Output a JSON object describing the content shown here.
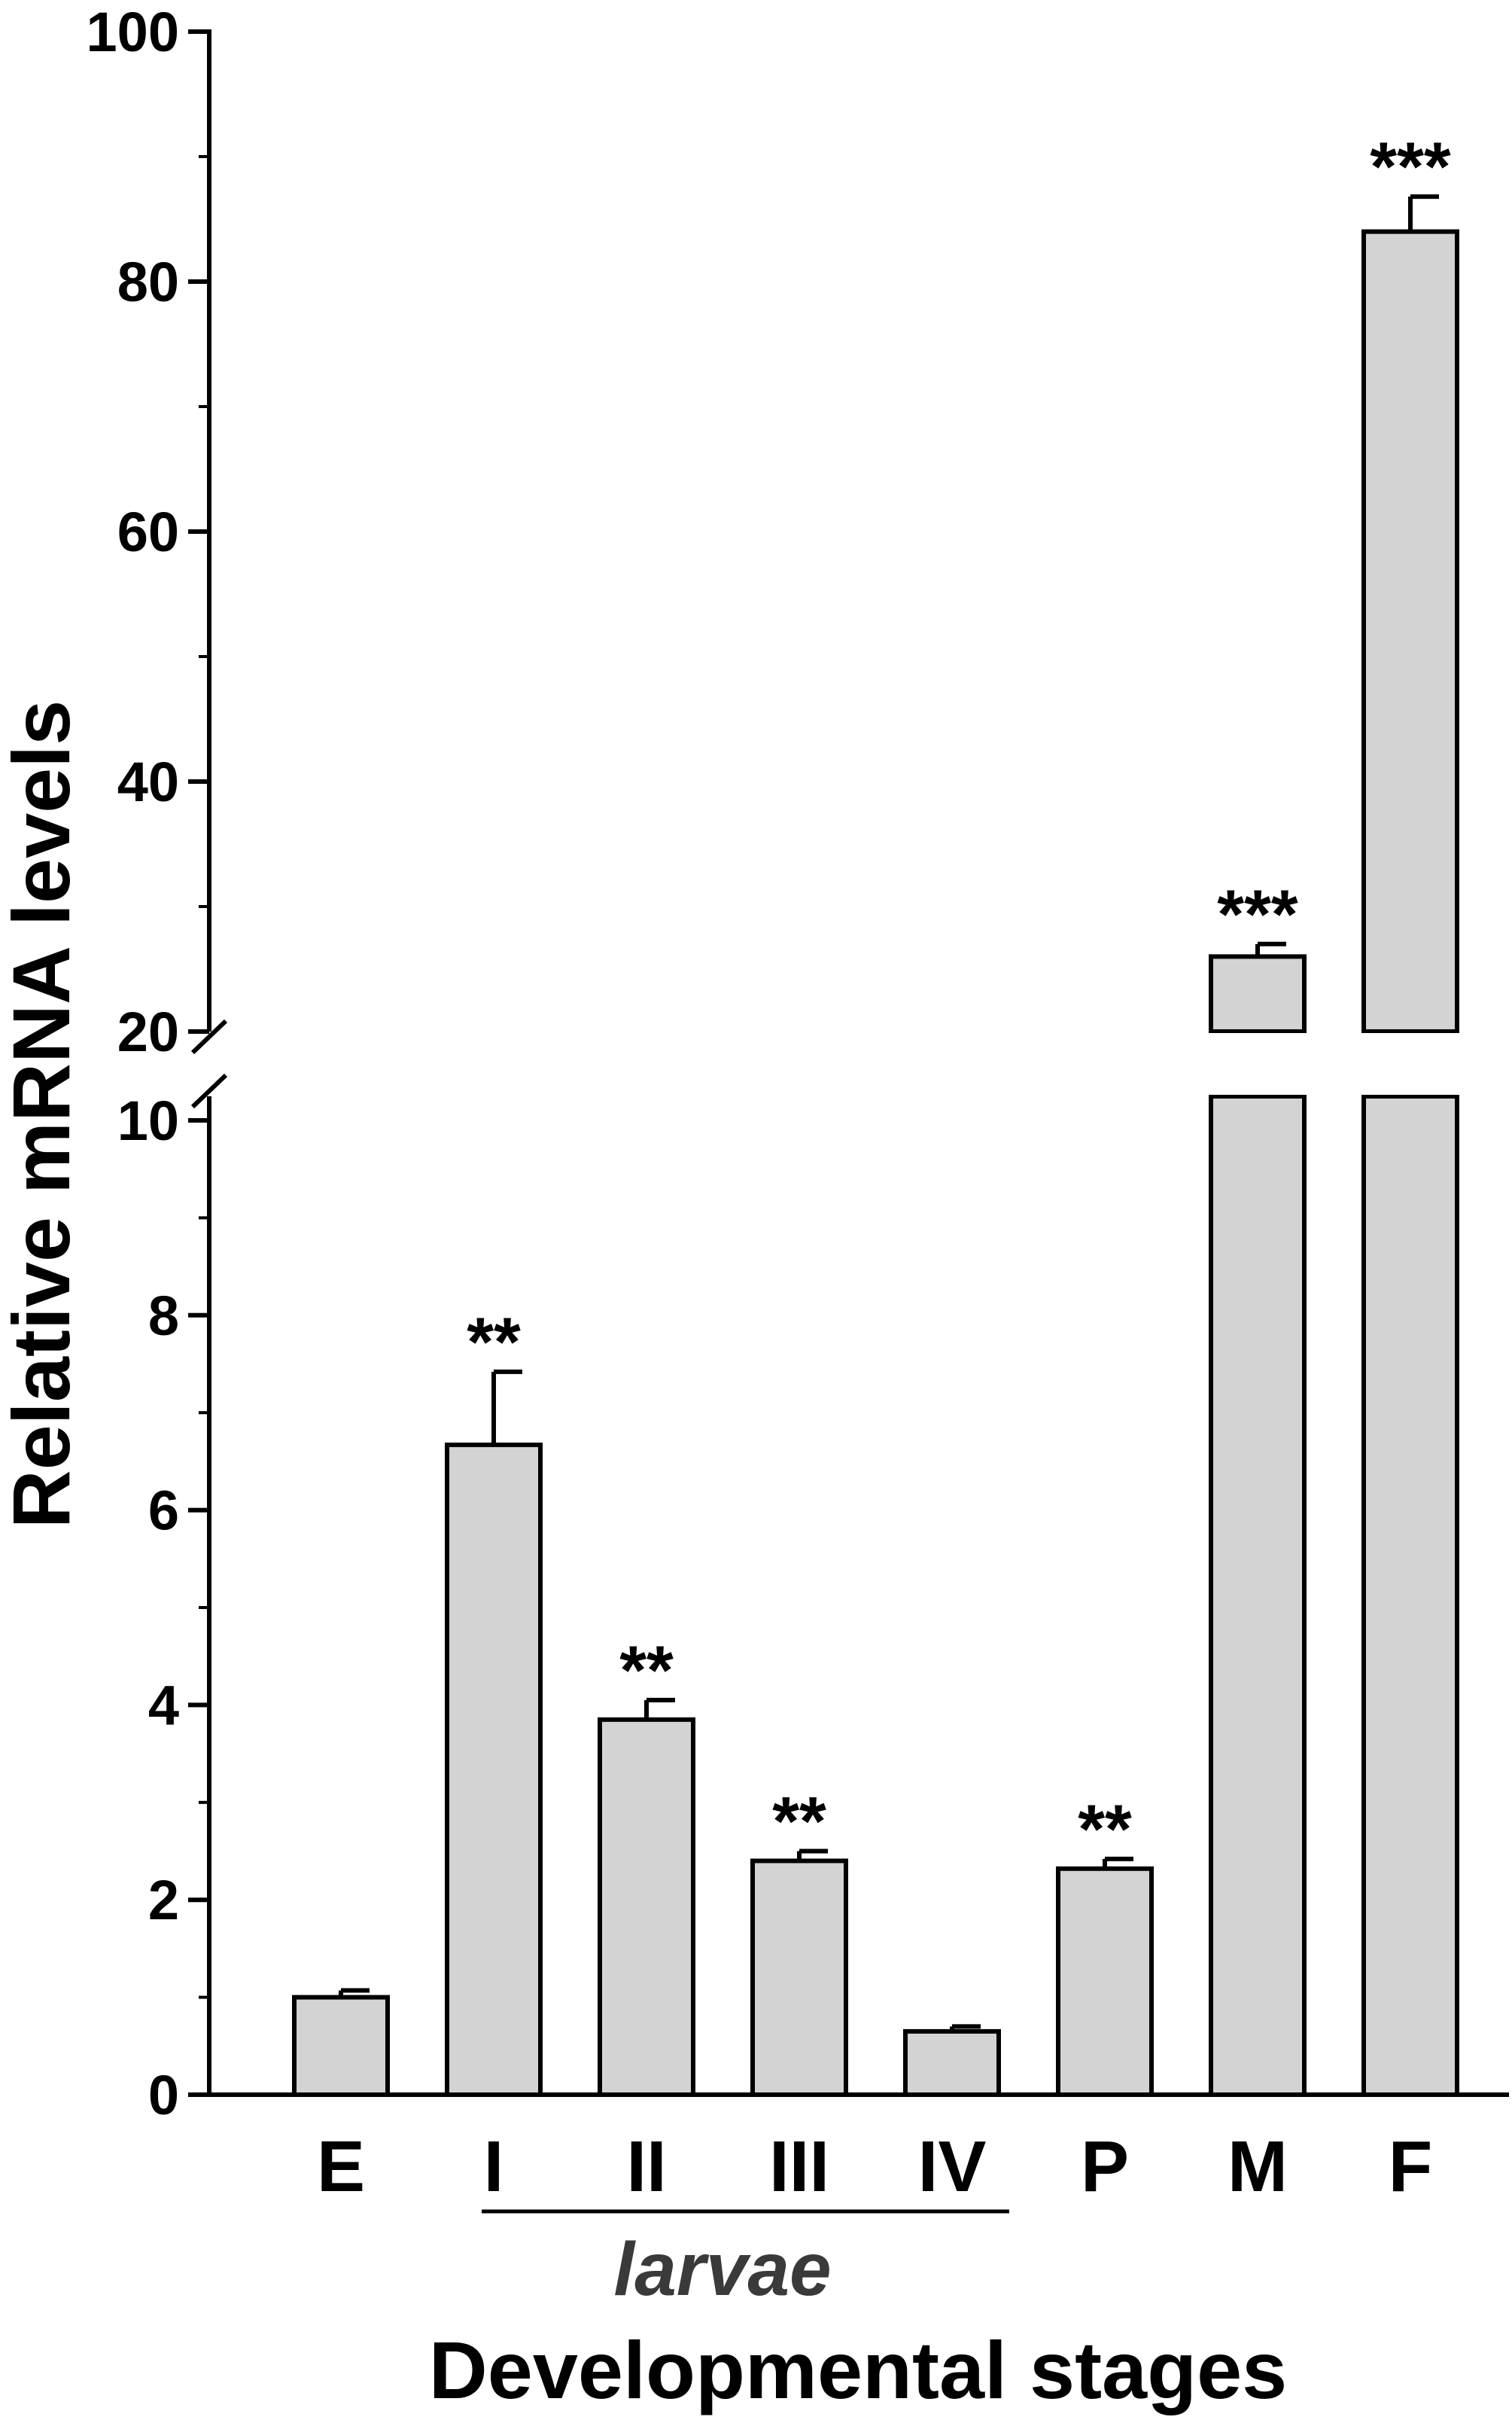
{
  "chart_data": {
    "type": "bar",
    "ylabel": "Relative mRNA levels",
    "xlabel": "Developmental stages",
    "categories": [
      "E",
      "I",
      "II",
      "III",
      "IV",
      "P",
      "M",
      "F"
    ],
    "values": [
      1.0,
      6.67,
      3.85,
      2.4,
      0.65,
      2.32,
      26.0,
      84.0
    ],
    "errors": [
      0.07,
      0.75,
      0.2,
      0.1,
      0.05,
      0.1,
      1.0,
      2.8
    ],
    "significance": [
      "",
      "**",
      "**",
      "**",
      "",
      "**",
      "***",
      "***"
    ],
    "group_label": "larvae",
    "group_members": [
      "I",
      "II",
      "III",
      "IV"
    ],
    "y_axis_break": {
      "lower_range": [
        0,
        10
      ],
      "upper_range": [
        20,
        100
      ],
      "lower_ticks": [
        "0",
        "2",
        "4",
        "6",
        "8",
        "10"
      ],
      "upper_ticks": [
        "20",
        "40",
        "60",
        "80",
        "100"
      ]
    },
    "bar_color": "#d3d3d3",
    "edge_color": "#000000"
  }
}
